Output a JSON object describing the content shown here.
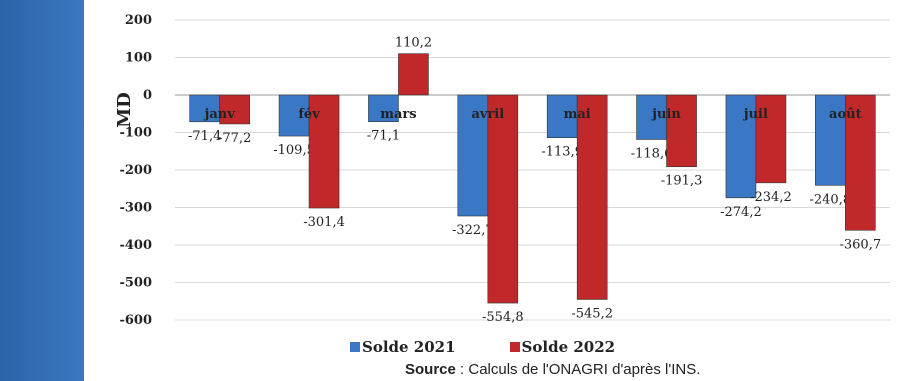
{
  "colors": {
    "band": "#2f6db5",
    "s2021": "#3a77c4",
    "s2022": "#c0282a"
  },
  "chart_data": {
    "type": "bar",
    "ylabel": "MD",
    "ylim": [
      -600,
      200
    ],
    "yticks": [
      "200",
      "100",
      "0",
      "-100",
      "-200",
      "-300",
      "-400",
      "-500",
      "-600"
    ],
    "categories": [
      "janv",
      "fév",
      "mars",
      "avril",
      "mai",
      "juin",
      "juil",
      "août"
    ],
    "series": [
      {
        "name": "Solde 2021",
        "values": [
          -71.4,
          -109.5,
          -71.1,
          -322.7,
          -113.9,
          -118.6,
          -274.2,
          -240.8
        ],
        "labels": [
          "-71,4",
          "-109,5",
          "-71,1",
          "-322,7",
          "-113,9",
          "-118,6",
          "-274,2",
          "-240,8"
        ]
      },
      {
        "name": "Solde 2022",
        "values": [
          -77.2,
          -301.4,
          110.2,
          -554.8,
          -545.2,
          -191.3,
          -234.2,
          -360.7
        ],
        "labels": [
          "-77,2",
          "-301,4",
          "110,2",
          "-554,8",
          "-545,2",
          "-191,3",
          "-234,2",
          "-360,7"
        ]
      }
    ],
    "grid": true,
    "legend": "bottom"
  },
  "legend": {
    "s2021": "Solde 2021",
    "s2022": "Solde 2022"
  },
  "source": {
    "label": "Source",
    "text": " : Calculs de l'ONAGRI d'après l'INS."
  }
}
